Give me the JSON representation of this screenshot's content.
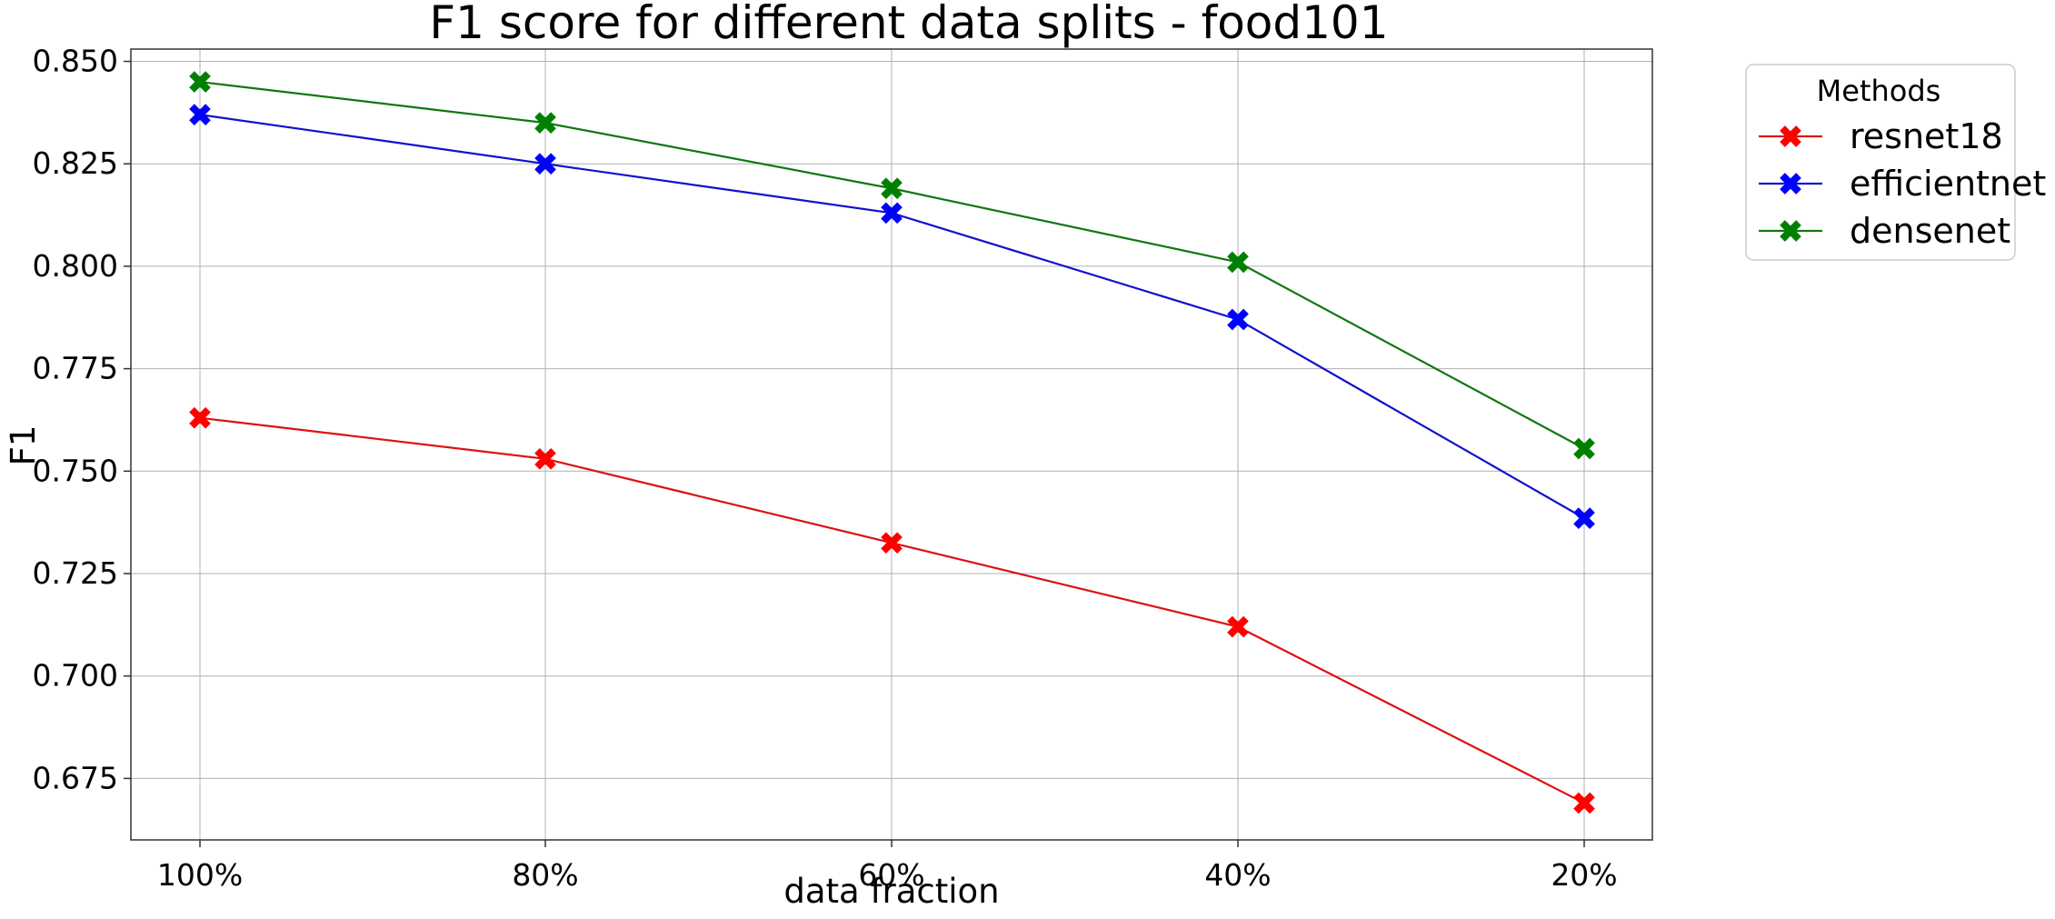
{
  "chart_data": {
    "type": "line",
    "title": "F1 score for different data splits - food101",
    "xlabel": "data fraction",
    "ylabel": "F1",
    "categories": [
      "100%",
      "80%",
      "60%",
      "40%",
      "20%"
    ],
    "ylim": [
      0.66,
      0.853
    ],
    "yticks": [
      0.675,
      0.7,
      0.725,
      0.75,
      0.775,
      0.8,
      0.825,
      0.85
    ],
    "ytick_labels": [
      "0.675",
      "0.700",
      "0.725",
      "0.750",
      "0.775",
      "0.800",
      "0.825",
      "0.850"
    ],
    "grid": true,
    "legend": {
      "title": "Methods",
      "placement": "outside-top-right"
    },
    "series": [
      {
        "name": "resnet18",
        "color": "#ff0000",
        "line_color": "#dd1111",
        "values": [
          0.763,
          0.753,
          0.7325,
          0.712,
          0.669
        ]
      },
      {
        "name": "efficientnet",
        "color": "#0000ff",
        "line_color": "#1111cc",
        "values": [
          0.837,
          0.825,
          0.813,
          0.787,
          0.7385
        ]
      },
      {
        "name": "densenet",
        "color": "#008000",
        "line_color": "#117711",
        "values": [
          0.845,
          0.835,
          0.819,
          0.801,
          0.7555
        ]
      }
    ]
  }
}
